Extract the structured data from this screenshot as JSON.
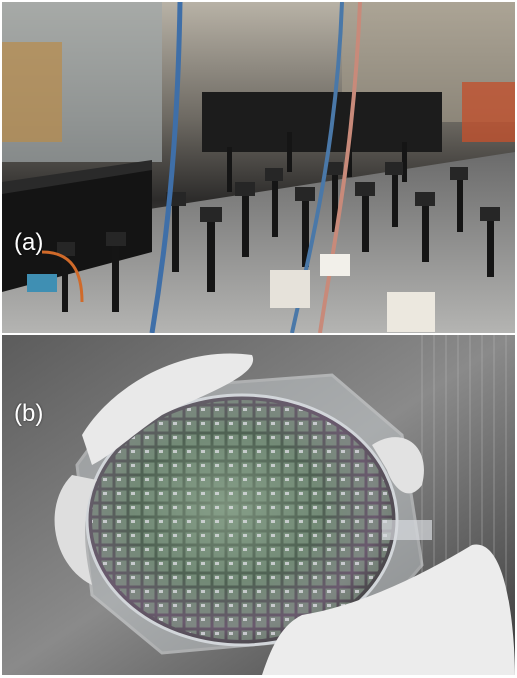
{
  "figure": {
    "panels": [
      {
        "label": "(a)",
        "subject": "optics-lab-table-photo"
      },
      {
        "label": "(b)",
        "subject": "silicon-wafer-in-gloved-hands-photo"
      }
    ]
  },
  "colors": {
    "background": "#ffffff",
    "label_text": "#ffffff"
  }
}
